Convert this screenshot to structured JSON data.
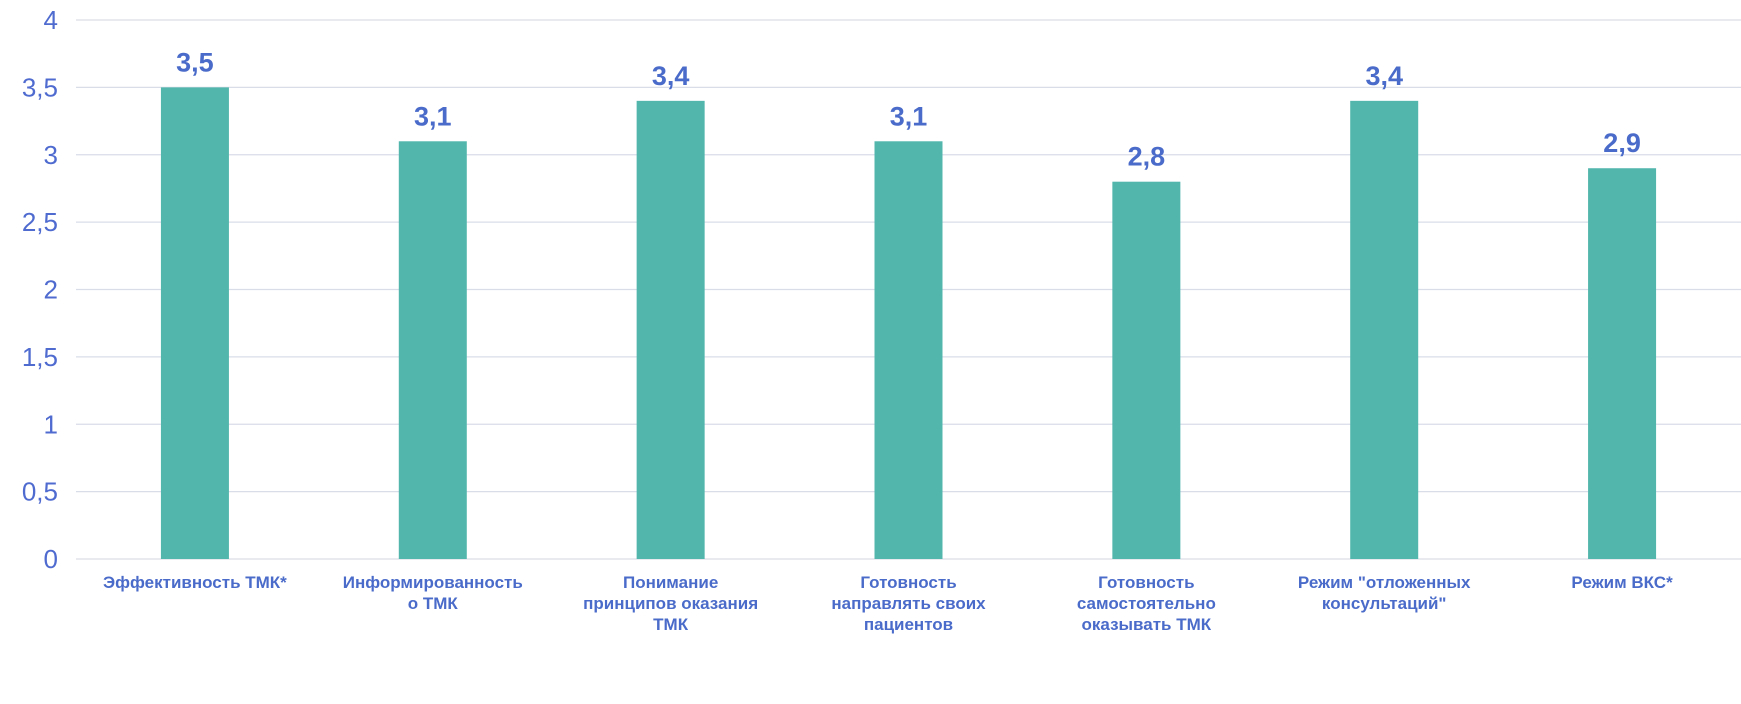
{
  "chart_data": {
    "type": "bar",
    "categories": [
      [
        "Эффективность ТМК*"
      ],
      [
        "Информированность",
        "о ТМК"
      ],
      [
        "Понимание",
        "принципов оказания",
        "ТМК"
      ],
      [
        "Готовность",
        "направлять своих",
        "пациентов"
      ],
      [
        "Готовность",
        "самостоятельно",
        "оказывать ТМК"
      ],
      [
        "Режим \"отложенных",
        "консультаций\""
      ],
      [
        "Режим ВКС*"
      ]
    ],
    "values": [
      3.5,
      3.1,
      3.4,
      3.1,
      2.8,
      3.4,
      2.9
    ],
    "value_labels": [
      "3,5",
      "3,1",
      "3,4",
      "3,1",
      "2,8",
      "3,4",
      "2,9"
    ],
    "yticks": [
      "0",
      "0,5",
      "1",
      "1,5",
      "2",
      "2,5",
      "3",
      "3,5",
      "4"
    ],
    "ylim": [
      0,
      4
    ],
    "grid": true,
    "bar_color": "#52b6ad",
    "label_color": "#4a6bc9"
  }
}
